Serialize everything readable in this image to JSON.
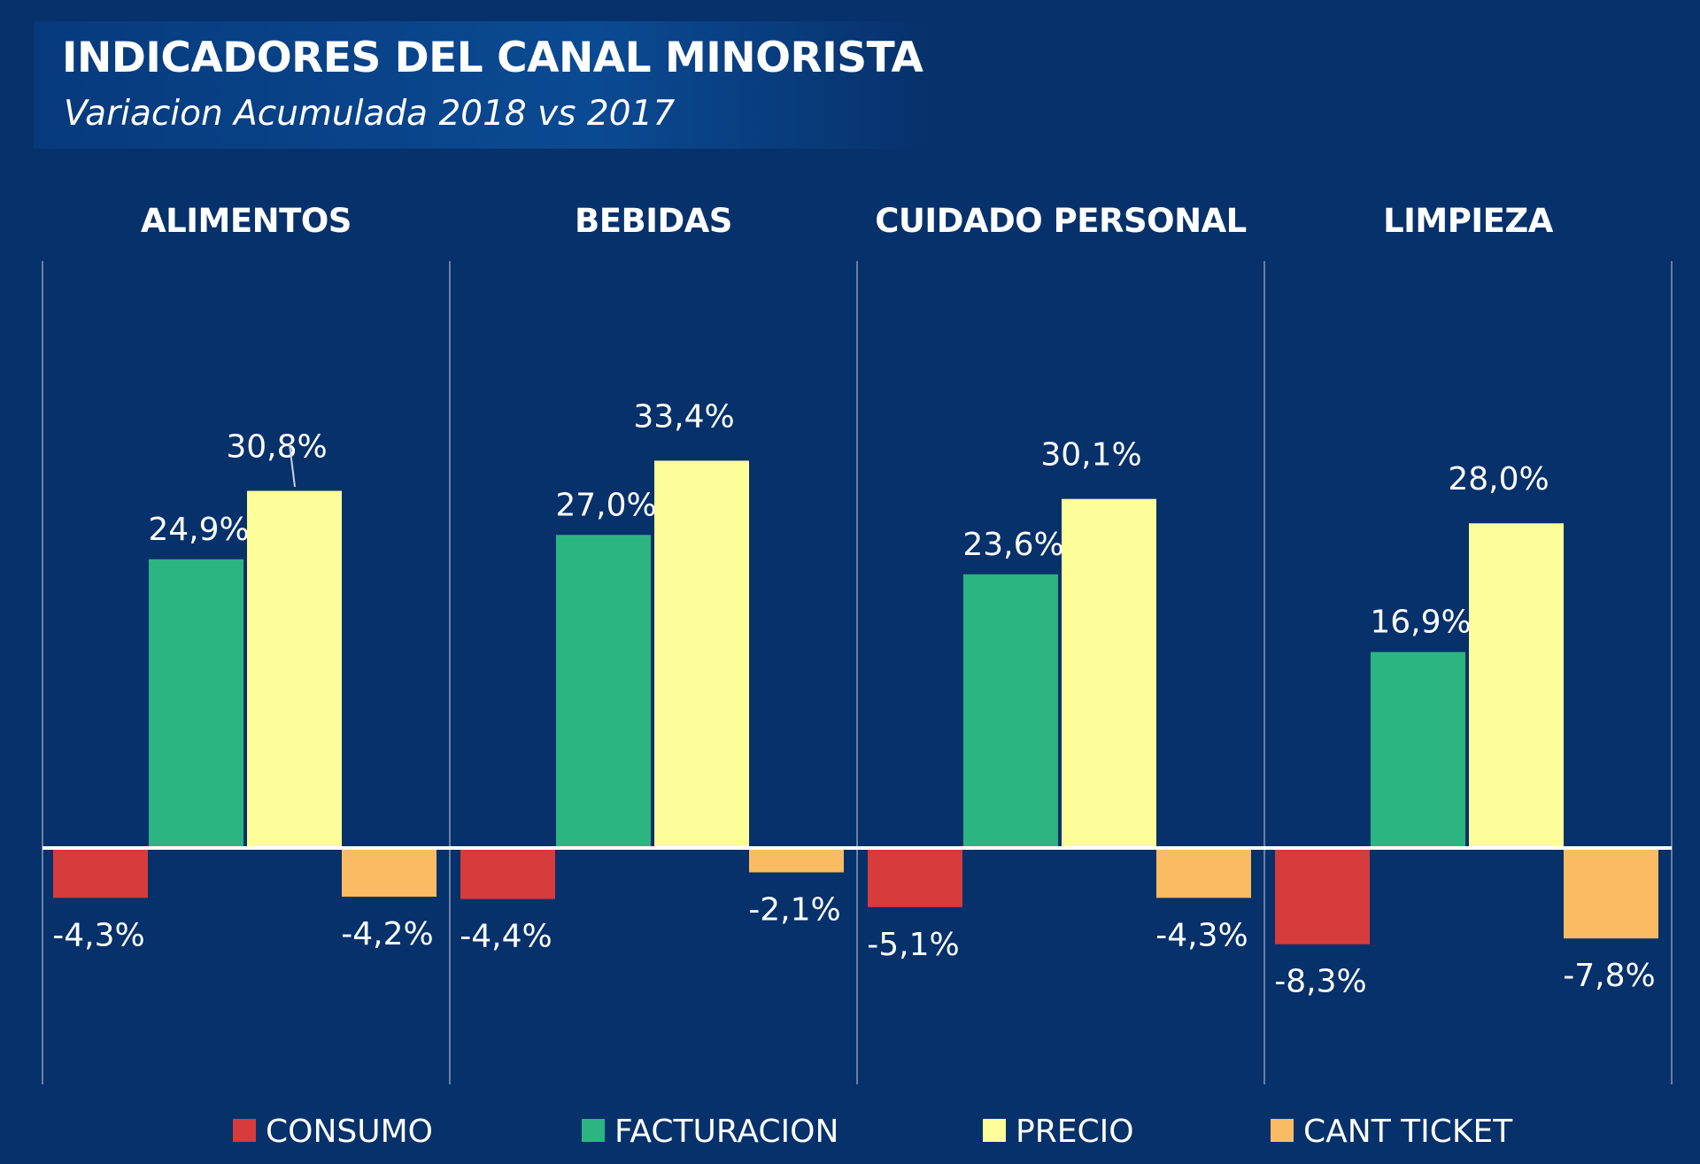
{
  "header": {
    "title": "INDICADORES DEL CANAL MINORISTA",
    "subtitle": "Variacion  Acumulada 2018 vs 2017"
  },
  "chart_data": {
    "type": "bar",
    "title": "INDICADORES DEL CANAL MINORISTA",
    "subtitle": "Variacion  Acumulada 2018 vs 2017",
    "unit": "%",
    "ylim": [
      -10,
      36
    ],
    "grid": false,
    "legend_position": "bottom",
    "categories": [
      "ALIMENTOS",
      "BEBIDAS",
      "CUIDADO PERSONAL",
      "LIMPIEZA"
    ],
    "series": [
      {
        "name": "CONSUMO",
        "color": "#d73b3b",
        "values": [
          -4.3,
          -4.4,
          -5.1,
          -8.3
        ],
        "labels": [
          "-4,3%",
          "-4,4%",
          "-5,1%",
          "-8,3%"
        ]
      },
      {
        "name": "FACTURACION",
        "color": "#2db581",
        "values": [
          24.9,
          27.0,
          23.6,
          16.9
        ],
        "labels": [
          "24,9%",
          "27,0%",
          "23,6%",
          "16,9%"
        ]
      },
      {
        "name": "PRECIO",
        "color": "#fdfd99",
        "values": [
          30.8,
          33.4,
          30.1,
          28.0
        ],
        "labels": [
          "30,8%",
          "33,4%",
          "30,1%",
          "28,0%"
        ]
      },
      {
        "name": "CANT TICKET",
        "color": "#f9bc62",
        "values": [
          -4.2,
          -2.1,
          -4.3,
          -7.8
        ],
        "labels": [
          "-4,2%",
          "-2,1%",
          "-4,3%",
          "-7,8%"
        ]
      }
    ]
  }
}
